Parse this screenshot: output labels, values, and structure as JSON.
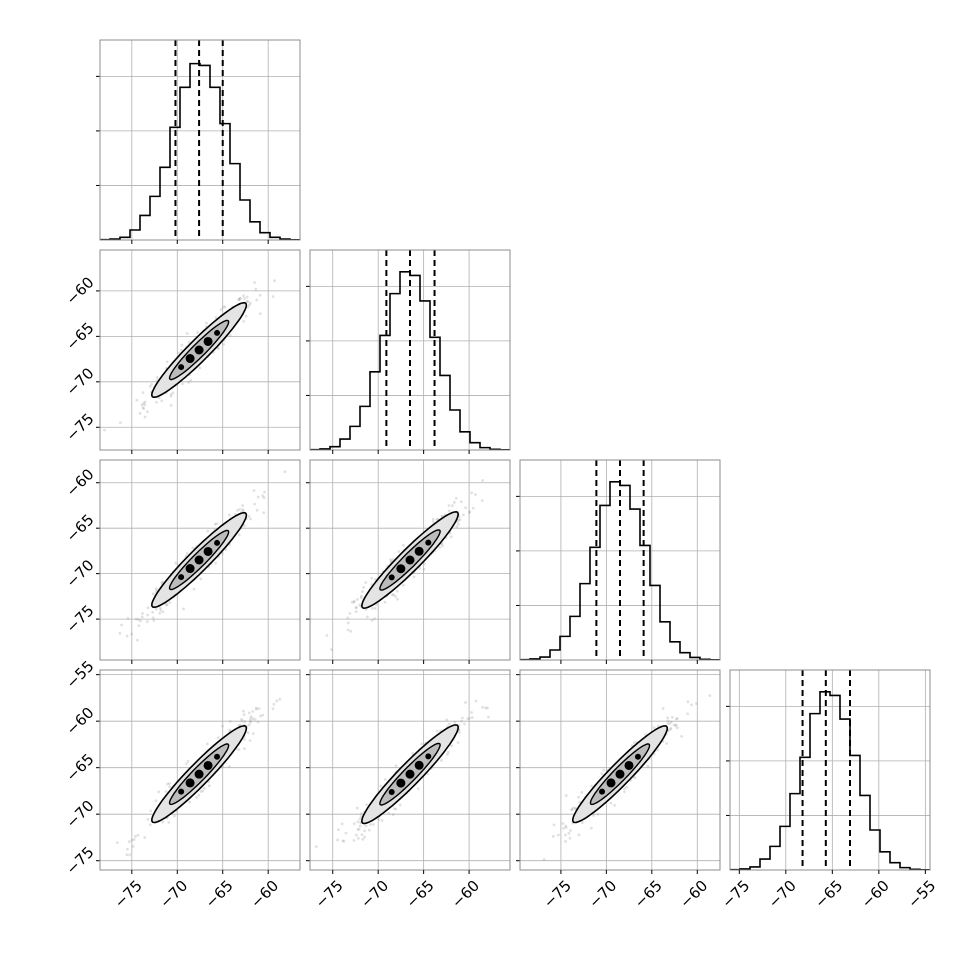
{
  "chart_data": {
    "type": "corner",
    "n_params": 4,
    "parameter_labels": [
      "",
      "",
      "",
      ""
    ],
    "tick_labels": {
      "x": [
        [
          "−75",
          "−70",
          "−65",
          "−60"
        ],
        [
          "−75",
          "−70",
          "−65",
          "−60"
        ],
        [
          "−75",
          "−70",
          "−65",
          "−60"
        ],
        [
          "−75",
          "−70",
          "−65",
          "−60",
          "−55"
        ]
      ],
      "y": [
        [
          "−60",
          "−65",
          "−70",
          "−75"
        ],
        [
          "−60",
          "−65",
          "−70",
          "−75"
        ],
        [
          "−55",
          "−60",
          "−65",
          "−70",
          "−75"
        ]
      ]
    },
    "params": [
      {
        "range": [
          -78.5,
          -56.5
        ],
        "x_ticks": [
          -75,
          -70,
          -65,
          -60
        ],
        "hist": {
          "bin_edges": [
            -78.5,
            -77.4,
            -76.3,
            -75.2,
            -74.1,
            -73.0,
            -71.9,
            -70.8,
            -69.7,
            -68.6,
            -67.5,
            -66.4,
            -65.3,
            -64.2,
            -63.1,
            -62.0,
            -60.9,
            -59.8,
            -58.7,
            -57.6,
            -56.5
          ],
          "counts": [
            0.2,
            0.5,
            1.5,
            5.5,
            13.5,
            24,
            40,
            62,
            84,
            97,
            96,
            84,
            64,
            42,
            22,
            10,
            4,
            1.5,
            0.5,
            0.1
          ]
        },
        "quantiles": [
          -70.2,
          -67.6,
          -65.0
        ],
        "hist_y_max": 110,
        "hist_y_ticks": [
          30,
          60,
          90
        ]
      },
      {
        "range": [
          -77.5,
          -55.5
        ],
        "x_ticks": [
          -75,
          -70,
          -65,
          -60
        ],
        "y_ticks": [
          -60,
          -65,
          -70,
          -75
        ],
        "hist": {
          "bin_edges": [
            -77.5,
            -76.4,
            -75.3,
            -74.2,
            -73.1,
            -72.0,
            -70.9,
            -69.8,
            -68.7,
            -67.6,
            -66.5,
            -65.4,
            -64.3,
            -63.2,
            -62.1,
            -61.0,
            -59.9,
            -58.8,
            -57.7,
            -56.6,
            -55.5
          ],
          "counts": [
            0.2,
            0.6,
            1.8,
            6,
            13,
            24,
            43,
            63,
            86,
            98,
            96,
            82,
            62,
            41,
            22,
            10,
            4,
            1.3,
            0.4,
            0.1
          ]
        },
        "quantiles": [
          -69.1,
          -66.5,
          -63.8
        ],
        "hist_y_max": 110,
        "hist_y_ticks": [
          30,
          60,
          90
        ]
      },
      {
        "range": [
          -79.5,
          -57.5
        ],
        "x_ticks": [
          -75,
          -70,
          -65,
          -60
        ],
        "y_ticks": [
          -60,
          -65,
          -70,
          -75
        ],
        "hist": {
          "bin_edges": [
            -79.5,
            -78.4,
            -77.3,
            -76.2,
            -75.1,
            -74.0,
            -72.9,
            -71.8,
            -70.7,
            -69.6,
            -68.5,
            -67.4,
            -66.3,
            -65.2,
            -64.1,
            -63.0,
            -61.9,
            -60.8,
            -59.7,
            -58.6,
            -57.5
          ],
          "counts": [
            0.2,
            0.6,
            1.6,
            5.5,
            13,
            24,
            42,
            62,
            85,
            98,
            96,
            83,
            63,
            41,
            21,
            10,
            4,
            1.4,
            0.4,
            0.1
          ]
        },
        "quantiles": [
          -71.1,
          -68.5,
          -65.9
        ],
        "hist_y_max": 110,
        "hist_y_ticks": [
          30,
          60,
          90
        ]
      },
      {
        "range": [
          -76.0,
          -54.5
        ],
        "x_ticks": [
          -75,
          -70,
          -65,
          -60,
          -55
        ],
        "y_ticks": [
          -55,
          -60,
          -65,
          -70,
          -75
        ],
        "hist": {
          "bin_edges": [
            -76.0,
            -74.925,
            -73.85,
            -72.775,
            -71.7,
            -70.625,
            -69.55,
            -68.475,
            -67.4,
            -66.325,
            -65.25,
            -64.175,
            -63.1,
            -62.025,
            -60.95,
            -59.875,
            -58.8,
            -57.725,
            -56.65,
            -55.575,
            -54.5
          ],
          "counts": [
            0.2,
            0.6,
            1.7,
            6,
            13,
            24,
            42,
            62,
            86,
            98,
            96,
            83,
            63,
            41,
            22,
            10,
            4,
            1.3,
            0.4,
            0.1
          ]
        },
        "quantiles": [
          -68.2,
          -65.7,
          -63.1
        ],
        "hist_y_max": 110,
        "hist_y_ticks": [
          30,
          60,
          90
        ]
      }
    ],
    "correlation": 0.95,
    "contour_color": "#000000",
    "fill_colors": [
      "#e4e4e4",
      "#bcbcbc"
    ],
    "hist_color": "#000000",
    "scatter_color": "#9a9a9a",
    "grid": true
  }
}
